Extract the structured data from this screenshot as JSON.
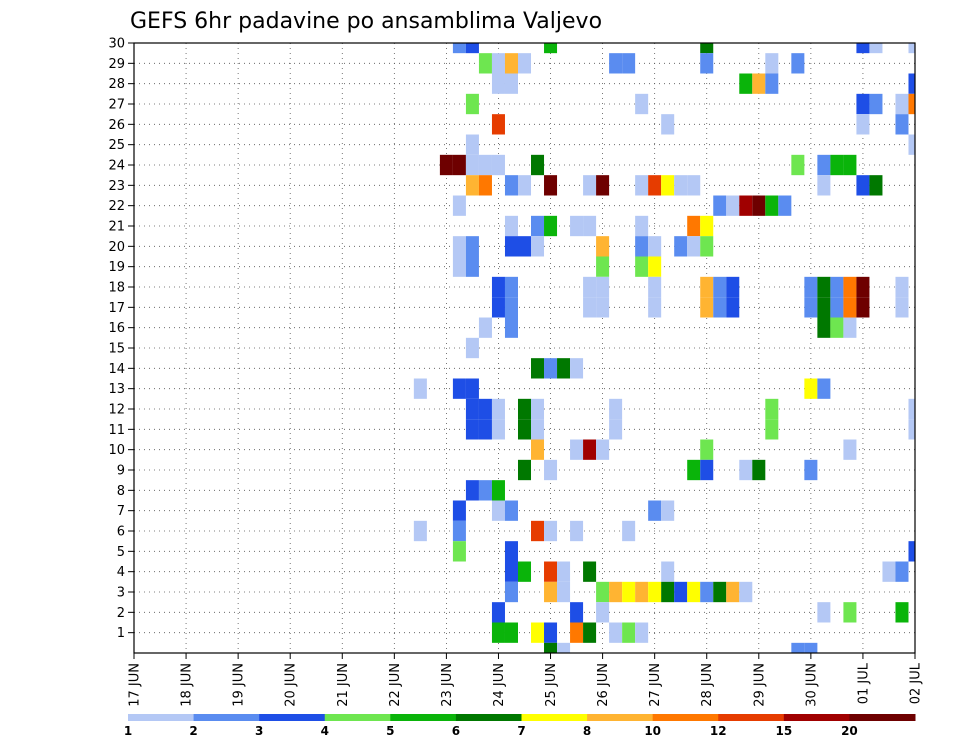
{
  "chart_data": {
    "type": "heatmap",
    "title": "GEFS 6hr padavine po ansamblima Valjevo",
    "x_tick_labels": [
      "17 JUN",
      "18 JUN",
      "19 JUN",
      "20 JUN",
      "21 JUN",
      "22 JUN",
      "23 JUN",
      "24 JUN",
      "25 JUN",
      "26 JUN",
      "27 JUN",
      "28 JUN",
      "29 JUN",
      "30 JUN",
      "01 JUL",
      "02 JUL"
    ],
    "y_tick_labels": [
      "1",
      "2",
      "3",
      "4",
      "5",
      "6",
      "7",
      "8",
      "9",
      "10",
      "11",
      "12",
      "13",
      "14",
      "15",
      "16",
      "17",
      "18",
      "19",
      "20",
      "21",
      "22",
      "23",
      "24",
      "25",
      "26",
      "27",
      "28",
      "29",
      "30"
    ],
    "legend_labels": [
      "1",
      "2",
      "3",
      "4",
      "5",
      "6",
      "7",
      "8",
      "10",
      "12",
      "15",
      "20"
    ],
    "legend_colors": [
      "#b4c8f5",
      "#5a8cf0",
      "#1e4ee6",
      "#6ee650",
      "#0ab40a",
      "#007800",
      "#ffff00",
      "#ffb432",
      "#ff7800",
      "#e63c00",
      "#a00000",
      "#6e0000"
    ],
    "levels": [
      1,
      2,
      3,
      4,
      5,
      6,
      7,
      8,
      10,
      12,
      15,
      20
    ],
    "x_start": "17 JUN 00Z",
    "step_hours": 6,
    "cells": [
      [
        30,
        "23 JUN 06Z",
        2
      ],
      [
        30,
        "23 JUN 12Z",
        3
      ],
      [
        30,
        "25 JUN 00Z",
        5
      ],
      [
        30,
        "28 JUN 00Z",
        6
      ],
      [
        30,
        "01 JUL 00Z",
        3
      ],
      [
        30,
        "01 JUL 06Z",
        1
      ],
      [
        30,
        "02 JUL 00Z",
        1
      ],
      [
        29,
        "23 JUN 18Z",
        4
      ],
      [
        29,
        "24 JUN 00Z",
        1
      ],
      [
        29,
        "24 JUN 06Z",
        8
      ],
      [
        29,
        "24 JUN 12Z",
        1
      ],
      [
        29,
        "26 JUN 06Z",
        2
      ],
      [
        29,
        "26 JUN 12Z",
        2
      ],
      [
        29,
        "28 JUN 00Z",
        2
      ],
      [
        29,
        "29 JUN 06Z",
        1
      ],
      [
        29,
        "29 JUN 18Z",
        2
      ],
      [
        28,
        "24 JUN 00Z",
        1
      ],
      [
        28,
        "24 JUN 06Z",
        1
      ],
      [
        28,
        "28 JUN 18Z",
        5
      ],
      [
        28,
        "29 JUN 00Z",
        8
      ],
      [
        28,
        "29 JUN 06Z",
        2
      ],
      [
        28,
        "02 JUL 00Z",
        3
      ],
      [
        27,
        "23 JUN 12Z",
        4
      ],
      [
        27,
        "26 JUN 18Z",
        1
      ],
      [
        27,
        "01 JUL 00Z",
        3
      ],
      [
        27,
        "01 JUL 06Z",
        2
      ],
      [
        27,
        "01 JUL 18Z",
        1
      ],
      [
        27,
        "02 JUL 00Z",
        10
      ],
      [
        26,
        "24 JUN 00Z",
        12
      ],
      [
        26,
        "27 JUN 06Z",
        1
      ],
      [
        26,
        "01 JUL 00Z",
        1
      ],
      [
        26,
        "01 JUL 18Z",
        2
      ],
      [
        25,
        "23 JUN 12Z",
        1
      ],
      [
        25,
        "02 JUL 00Z",
        1
      ],
      [
        24,
        "23 JUN 00Z",
        20
      ],
      [
        24,
        "23 JUN 06Z",
        20
      ],
      [
        24,
        "23 JUN 12Z",
        1
      ],
      [
        24,
        "23 JUN 18Z",
        1
      ],
      [
        24,
        "24 JUN 00Z",
        1
      ],
      [
        24,
        "24 JUN 18Z",
        6
      ],
      [
        24,
        "29 JUN 18Z",
        4
      ],
      [
        24,
        "30 JUN 06Z",
        2
      ],
      [
        24,
        "30 JUN 12Z",
        5
      ],
      [
        24,
        "30 JUN 18Z",
        5
      ],
      [
        23,
        "23 JUN 12Z",
        8
      ],
      [
        23,
        "23 JUN 18Z",
        10
      ],
      [
        23,
        "24 JUN 06Z",
        2
      ],
      [
        23,
        "24 JUN 12Z",
        1
      ],
      [
        23,
        "25 JUN 00Z",
        20
      ],
      [
        23,
        "25 JUN 18Z",
        1
      ],
      [
        23,
        "26 JUN 00Z",
        20
      ],
      [
        23,
        "26 JUN 18Z",
        1
      ],
      [
        23,
        "27 JUN 00Z",
        12
      ],
      [
        23,
        "27 JUN 06Z",
        7
      ],
      [
        23,
        "27 JUN 12Z",
        1
      ],
      [
        23,
        "27 JUN 18Z",
        1
      ],
      [
        23,
        "30 JUN 06Z",
        1
      ],
      [
        23,
        "01 JUL 00Z",
        3
      ],
      [
        23,
        "01 JUL 06Z",
        6
      ],
      [
        22,
        "23 JUN 06Z",
        1
      ],
      [
        22,
        "28 JUN 06Z",
        2
      ],
      [
        22,
        "28 JUN 12Z",
        1
      ],
      [
        22,
        "28 JUN 18Z",
        15
      ],
      [
        22,
        "29 JUN 00Z",
        20
      ],
      [
        22,
        "29 JUN 06Z",
        5
      ],
      [
        22,
        "29 JUN 12Z",
        2
      ],
      [
        21,
        "24 JUN 06Z",
        1
      ],
      [
        21,
        "24 JUN 18Z",
        2
      ],
      [
        21,
        "25 JUN 00Z",
        5
      ],
      [
        21,
        "25 JUN 12Z",
        1
      ],
      [
        21,
        "25 JUN 18Z",
        1
      ],
      [
        21,
        "26 JUN 18Z",
        1
      ],
      [
        21,
        "27 JUN 18Z",
        10
      ],
      [
        21,
        "28 JUN 00Z",
        7
      ],
      [
        20,
        "23 JUN 06Z",
        1
      ],
      [
        20,
        "23 JUN 12Z",
        2
      ],
      [
        20,
        "24 JUN 06Z",
        3
      ],
      [
        20,
        "24 JUN 12Z",
        3
      ],
      [
        20,
        "24 JUN 18Z",
        1
      ],
      [
        20,
        "26 JUN 00Z",
        8
      ],
      [
        20,
        "26 JUN 18Z",
        2
      ],
      [
        20,
        "27 JUN 00Z",
        1
      ],
      [
        20,
        "27 JUN 12Z",
        2
      ],
      [
        20,
        "27 JUN 18Z",
        1
      ],
      [
        20,
        "28 JUN 00Z",
        4
      ],
      [
        19,
        "23 JUN 06Z",
        1
      ],
      [
        19,
        "23 JUN 12Z",
        2
      ],
      [
        19,
        "26 JUN 00Z",
        4
      ],
      [
        19,
        "26 JUN 18Z",
        4
      ],
      [
        19,
        "27 JUN 00Z",
        7
      ],
      [
        18,
        "24 JUN 00Z",
        3
      ],
      [
        18,
        "24 JUN 06Z",
        2
      ],
      [
        18,
        "25 JUN 18Z",
        1
      ],
      [
        18,
        "26 JUN 00Z",
        1
      ],
      [
        18,
        "27 JUN 00Z",
        1
      ],
      [
        18,
        "28 JUN 00Z",
        8
      ],
      [
        18,
        "28 JUN 06Z",
        2
      ],
      [
        18,
        "28 JUN 12Z",
        3
      ],
      [
        18,
        "30 JUN 00Z",
        2
      ],
      [
        18,
        "30 JUN 06Z",
        6
      ],
      [
        18,
        "30 JUN 12Z",
        2
      ],
      [
        18,
        "30 JUN 18Z",
        10
      ],
      [
        18,
        "01 JUL 00Z",
        20
      ],
      [
        18,
        "01 JUL 18Z",
        1
      ],
      [
        17,
        "24 JUN 00Z",
        3
      ],
      [
        17,
        "24 JUN 06Z",
        2
      ],
      [
        17,
        "25 JUN 18Z",
        1
      ],
      [
        17,
        "26 JUN 00Z",
        1
      ],
      [
        17,
        "27 JUN 00Z",
        1
      ],
      [
        17,
        "28 JUN 00Z",
        8
      ],
      [
        17,
        "28 JUN 06Z",
        2
      ],
      [
        17,
        "28 JUN 12Z",
        3
      ],
      [
        17,
        "30 JUN 00Z",
        2
      ],
      [
        17,
        "30 JUN 06Z",
        6
      ],
      [
        17,
        "30 JUN 12Z",
        2
      ],
      [
        17,
        "30 JUN 18Z",
        10
      ],
      [
        17,
        "01 JUL 00Z",
        20
      ],
      [
        17,
        "01 JUL 18Z",
        1
      ],
      [
        16,
        "23 JUN 18Z",
        1
      ],
      [
        16,
        "24 JUN 06Z",
        2
      ],
      [
        16,
        "30 JUN 06Z",
        6
      ],
      [
        16,
        "30 JUN 12Z",
        4
      ],
      [
        16,
        "30 JUN 18Z",
        1
      ],
      [
        15,
        "23 JUN 12Z",
        1
      ],
      [
        14,
        "24 JUN 18Z",
        6
      ],
      [
        14,
        "25 JUN 00Z",
        2
      ],
      [
        14,
        "25 JUN 06Z",
        6
      ],
      [
        14,
        "25 JUN 12Z",
        1
      ],
      [
        13,
        "22 JUN 12Z",
        1
      ],
      [
        13,
        "23 JUN 06Z",
        3
      ],
      [
        13,
        "23 JUN 12Z",
        3
      ],
      [
        13,
        "30 JUN 00Z",
        7
      ],
      [
        13,
        "30 JUN 06Z",
        2
      ],
      [
        12,
        "23 JUN 12Z",
        3
      ],
      [
        12,
        "23 JUN 18Z",
        3
      ],
      [
        12,
        "24 JUN 00Z",
        1
      ],
      [
        12,
        "24 JUN 12Z",
        6
      ],
      [
        12,
        "24 JUN 18Z",
        1
      ],
      [
        12,
        "26 JUN 06Z",
        1
      ],
      [
        12,
        "29 JUN 06Z",
        4
      ],
      [
        12,
        "02 JUL 00Z",
        1
      ],
      [
        11,
        "23 JUN 12Z",
        3
      ],
      [
        11,
        "23 JUN 18Z",
        3
      ],
      [
        11,
        "24 JUN 00Z",
        1
      ],
      [
        11,
        "24 JUN 12Z",
        6
      ],
      [
        11,
        "24 JUN 18Z",
        1
      ],
      [
        11,
        "26 JUN 06Z",
        1
      ],
      [
        11,
        "29 JUN 06Z",
        4
      ],
      [
        11,
        "02 JUL 00Z",
        1
      ],
      [
        10,
        "24 JUN 18Z",
        8
      ],
      [
        10,
        "25 JUN 12Z",
        1
      ],
      [
        10,
        "25 JUN 18Z",
        15
      ],
      [
        10,
        "26 JUN 00Z",
        1
      ],
      [
        10,
        "28 JUN 00Z",
        4
      ],
      [
        10,
        "30 JUN 18Z",
        1
      ],
      [
        9,
        "24 JUN 12Z",
        6
      ],
      [
        9,
        "25 JUN 00Z",
        1
      ],
      [
        9,
        "27 JUN 18Z",
        5
      ],
      [
        9,
        "28 JUN 00Z",
        3
      ],
      [
        9,
        "28 JUN 18Z",
        1
      ],
      [
        9,
        "29 JUN 00Z",
        6
      ],
      [
        9,
        "30 JUN 00Z",
        2
      ],
      [
        8,
        "23 JUN 12Z",
        3
      ],
      [
        8,
        "23 JUN 18Z",
        2
      ],
      [
        8,
        "24 JUN 00Z",
        5
      ],
      [
        7,
        "23 JUN 06Z",
        3
      ],
      [
        7,
        "24 JUN 00Z",
        1
      ],
      [
        7,
        "24 JUN 06Z",
        2
      ],
      [
        7,
        "27 JUN 00Z",
        2
      ],
      [
        7,
        "27 JUN 06Z",
        1
      ],
      [
        6,
        "22 JUN 12Z",
        1
      ],
      [
        6,
        "23 JUN 06Z",
        2
      ],
      [
        6,
        "24 JUN 18Z",
        12
      ],
      [
        6,
        "25 JUN 00Z",
        1
      ],
      [
        6,
        "25 JUN 12Z",
        1
      ],
      [
        6,
        "26 JUN 12Z",
        1
      ],
      [
        5,
        "23 JUN 06Z",
        4
      ],
      [
        5,
        "24 JUN 06Z",
        3
      ],
      [
        5,
        "02 JUL 00Z",
        3
      ],
      [
        4,
        "24 JUN 06Z",
        3
      ],
      [
        4,
        "24 JUN 12Z",
        5
      ],
      [
        4,
        "25 JUN 00Z",
        12
      ],
      [
        4,
        "25 JUN 06Z",
        1
      ],
      [
        4,
        "25 JUN 18Z",
        6
      ],
      [
        4,
        "27 JUN 06Z",
        1
      ],
      [
        4,
        "01 JUL 12Z",
        1
      ],
      [
        4,
        "01 JUL 18Z",
        2
      ],
      [
        3,
        "24 JUN 06Z",
        2
      ],
      [
        3,
        "25 JUN 00Z",
        8
      ],
      [
        3,
        "25 JUN 06Z",
        1
      ],
      [
        3,
        "26 JUN 00Z",
        4
      ],
      [
        3,
        "26 JUN 06Z",
        8
      ],
      [
        3,
        "26 JUN 12Z",
        7
      ],
      [
        3,
        "26 JUN 18Z",
        8
      ],
      [
        3,
        "27 JUN 00Z",
        7
      ],
      [
        3,
        "27 JUN 06Z",
        6
      ],
      [
        3,
        "27 JUN 12Z",
        3
      ],
      [
        3,
        "27 JUN 18Z",
        7
      ],
      [
        3,
        "28 JUN 00Z",
        2
      ],
      [
        3,
        "28 JUN 06Z",
        6
      ],
      [
        3,
        "28 JUN 12Z",
        8
      ],
      [
        3,
        "28 JUN 18Z",
        1
      ],
      [
        2,
        "24 JUN 00Z",
        3
      ],
      [
        2,
        "25 JUN 12Z",
        3
      ],
      [
        2,
        "26 JUN 00Z",
        1
      ],
      [
        2,
        "30 JUN 06Z",
        1
      ],
      [
        2,
        "30 JUN 18Z",
        4
      ],
      [
        2,
        "01 JUL 18Z",
        5
      ],
      [
        1,
        "24 JUN 00Z",
        5
      ],
      [
        1,
        "24 JUN 06Z",
        5
      ],
      [
        1,
        "24 JUN 18Z",
        7
      ],
      [
        1,
        "25 JUN 00Z",
        3
      ],
      [
        1,
        "25 JUN 12Z",
        10
      ],
      [
        1,
        "25 JUN 18Z",
        6
      ],
      [
        1,
        "26 JUN 06Z",
        1
      ],
      [
        1,
        "26 JUN 12Z",
        4
      ],
      [
        1,
        "26 JUN 18Z",
        1
      ],
      [
        0,
        "25 JUN 00Z",
        6
      ],
      [
        0,
        "25 JUN 06Z",
        1
      ],
      [
        0,
        "29 JUN 18Z",
        2
      ],
      [
        0,
        "30 JUN 00Z",
        2
      ]
    ]
  }
}
